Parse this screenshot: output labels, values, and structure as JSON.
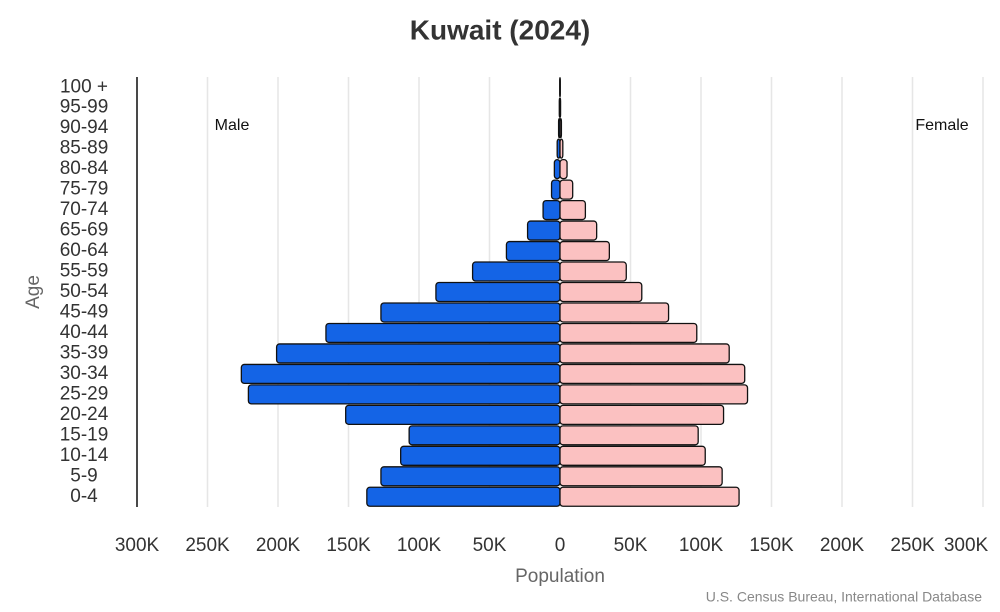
{
  "chart_data": {
    "type": "population-pyramid",
    "title": "Kuwait (2024)",
    "x_label": "Population",
    "y_label": "Age",
    "annotations": {
      "left": "Male",
      "right": "Female",
      "source": "U.S. Census Bureau, International Database"
    },
    "categories": [
      "0-4",
      "5-9",
      "10-14",
      "15-19",
      "20-24",
      "25-29",
      "30-34",
      "35-39",
      "40-44",
      "45-49",
      "50-54",
      "55-59",
      "60-64",
      "65-69",
      "70-74",
      "75-79",
      "80-84",
      "85-89",
      "90-94",
      "95-99",
      "100 +"
    ],
    "series": [
      {
        "name": "Male",
        "side": "left",
        "color": "#1464e6",
        "values": [
          137000,
          127000,
          113000,
          107000,
          152000,
          221000,
          226000,
          201000,
          166000,
          127000,
          88000,
          62000,
          38000,
          23000,
          12000,
          6000,
          4000,
          2000,
          1000,
          500,
          200
        ]
      },
      {
        "name": "Female",
        "side": "right",
        "color": "#fbc1c1",
        "values": [
          127000,
          115000,
          103000,
          98000,
          116000,
          133000,
          131000,
          120000,
          97000,
          77000,
          58000,
          47000,
          35000,
          26000,
          18000,
          9000,
          5000,
          2000,
          1000,
          400,
          200
        ]
      }
    ],
    "xlim": [
      -300000,
      300000
    ],
    "xticks": [
      {
        "value": -300000,
        "label": "300K"
      },
      {
        "value": -250000,
        "label": "250K"
      },
      {
        "value": -200000,
        "label": "200K"
      },
      {
        "value": -150000,
        "label": "150K"
      },
      {
        "value": -100000,
        "label": "100K"
      },
      {
        "value": -50000,
        "label": "50K"
      },
      0,
      {
        "value": 50000,
        "label": "50K"
      },
      {
        "value": 100000,
        "label": "100K"
      },
      {
        "value": 150000,
        "label": "150K"
      },
      {
        "value": 200000,
        "label": "200K"
      },
      {
        "value": 250000,
        "label": "250K"
      },
      {
        "value": 300000,
        "label": "300K"
      }
    ],
    "grid": true
  }
}
